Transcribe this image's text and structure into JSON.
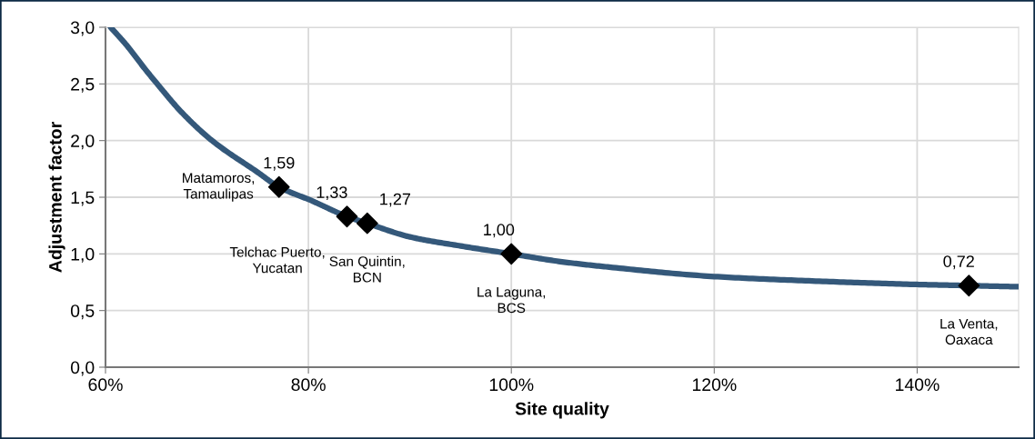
{
  "chart_data": {
    "type": "line",
    "xlabel": "Site quality",
    "ylabel": "Adjustment factor",
    "xlim": [
      60,
      150
    ],
    "ylim": [
      0,
      3.0
    ],
    "xticks": [
      {
        "value": 60,
        "label": "60%"
      },
      {
        "value": 80,
        "label": "80%"
      },
      {
        "value": 100,
        "label": "100%"
      },
      {
        "value": 120,
        "label": "120%"
      },
      {
        "value": 140,
        "label": "140%"
      }
    ],
    "yticks": [
      {
        "value": 0,
        "label": "0,0"
      },
      {
        "value": 0.5,
        "label": "0,5"
      },
      {
        "value": 1.0,
        "label": "1,0"
      },
      {
        "value": 1.5,
        "label": "1,5"
      },
      {
        "value": 2.0,
        "label": "2,0"
      },
      {
        "value": 2.5,
        "label": "2,5"
      },
      {
        "value": 3.0,
        "label": "3,0"
      }
    ],
    "grid": true,
    "legend": false,
    "series": [
      {
        "color": "#34587a",
        "marker": "none",
        "line_style": "solid",
        "x": [
          60.5,
          62,
          64,
          65.1,
          67.5,
          70.5,
          75,
          77.1,
          80.3,
          83.8,
          85.8,
          90,
          95,
          100,
          105,
          110,
          120,
          130,
          140,
          145.1,
          150
        ],
        "values": [
          3.0,
          2.85,
          2.62,
          2.5,
          2.25,
          2.0,
          1.72,
          1.59,
          1.47,
          1.33,
          1.27,
          1.15,
          1.07,
          1.0,
          0.93,
          0.88,
          0.8,
          0.76,
          0.73,
          0.72,
          0.71
        ]
      },
      {
        "type": "scatter",
        "color": "#000000",
        "marker": "diamond",
        "x": [
          77.1,
          83.8,
          85.8,
          100,
          145.1
        ],
        "values": [
          1.59,
          1.33,
          1.27,
          1.0,
          0.72
        ],
        "value_labels": [
          "1,59",
          "1,33",
          "1,27",
          "1,00",
          "0,72"
        ]
      }
    ],
    "annotations": [
      {
        "text": "Matamoros,\nTamaulipas",
        "x": 77.1,
        "y": 1.59
      },
      {
        "text": "Telchac Puerto,\nYucatan",
        "x": 83.8,
        "y": 1.33
      },
      {
        "text": "San Quintin,\nBCN",
        "x": 85.8,
        "y": 1.27
      },
      {
        "text": "La Laguna,\nBCS",
        "x": 100,
        "y": 1.0
      },
      {
        "text": "La Venta,\nOaxaca",
        "x": 145.1,
        "y": 0.72
      }
    ]
  }
}
